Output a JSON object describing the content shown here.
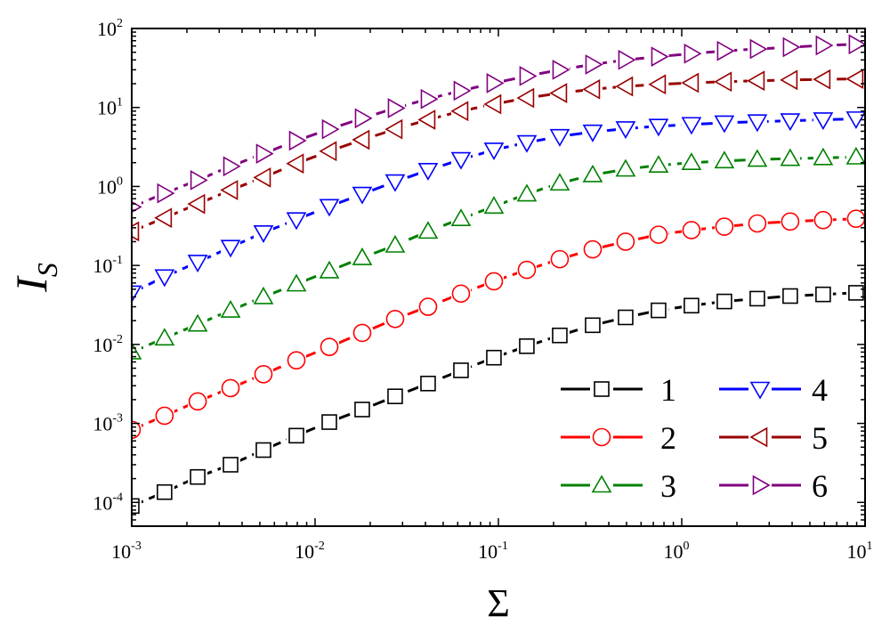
{
  "chart_data": {
    "type": "line",
    "xscale": "log",
    "yscale": "log",
    "xlim": [
      0.001,
      10
    ],
    "ylim": [
      5e-05,
      100
    ],
    "xlabel": "Σ",
    "ylabel": "I",
    "ylabel_sub": "S",
    "x_ticks": [
      {
        "base": "10",
        "exp": "-3",
        "value": 0.001
      },
      {
        "base": "10",
        "exp": "-2",
        "value": 0.01
      },
      {
        "base": "10",
        "exp": "-1",
        "value": 0.1
      },
      {
        "base": "10",
        "exp": "0",
        "value": 1
      },
      {
        "base": "10",
        "exp": "1",
        "value": 10
      }
    ],
    "y_ticks": [
      {
        "base": "10",
        "exp": "-4",
        "value": 0.0001
      },
      {
        "base": "10",
        "exp": "-3",
        "value": 0.001
      },
      {
        "base": "10",
        "exp": "-2",
        "value": 0.01
      },
      {
        "base": "10",
        "exp": "-1",
        "value": 0.1
      },
      {
        "base": "10",
        "exp": "0",
        "value": 1
      },
      {
        "base": "10",
        "exp": "1",
        "value": 10
      },
      {
        "base": "10",
        "exp": "2",
        "value": 100
      }
    ],
    "x": [
      0.001,
      0.00151,
      0.00229,
      0.00346,
      0.00523,
      0.00791,
      0.01196,
      0.01808,
      0.02734,
      0.04134,
      0.06251,
      0.09452,
      0.1429,
      0.2161,
      0.3268,
      0.4941,
      0.7471,
      1.1296,
      1.708,
      2.583,
      3.905,
      5.905,
      8.93
    ],
    "legend_placement": "bottom-right",
    "grid": false,
    "series": [
      {
        "name": "1",
        "color": "#000000",
        "marker": "square",
        "values": [
          9e-05,
          0.000135,
          0.00021,
          0.0003,
          0.00046,
          0.0007,
          0.00104,
          0.0015,
          0.0022,
          0.0032,
          0.0047,
          0.0068,
          0.0095,
          0.013,
          0.0175,
          0.022,
          0.027,
          0.031,
          0.035,
          0.038,
          0.041,
          0.043,
          0.045
        ]
      },
      {
        "name": "2",
        "color": "#ff0000",
        "marker": "circle",
        "values": [
          0.00083,
          0.00125,
          0.0019,
          0.0028,
          0.0042,
          0.0063,
          0.0093,
          0.014,
          0.021,
          0.03,
          0.044,
          0.063,
          0.088,
          0.12,
          0.16,
          0.2,
          0.245,
          0.28,
          0.31,
          0.34,
          0.36,
          0.375,
          0.39
        ]
      },
      {
        "name": "3",
        "color": "#008000",
        "marker": "triangle-up",
        "values": [
          0.008,
          0.012,
          0.018,
          0.027,
          0.04,
          0.058,
          0.085,
          0.125,
          0.18,
          0.27,
          0.39,
          0.56,
          0.8,
          1.1,
          1.4,
          1.65,
          1.85,
          2.0,
          2.1,
          2.2,
          2.25,
          2.3,
          2.35
        ]
      },
      {
        "name": "4",
        "color": "#0000ff",
        "marker": "triangle-down",
        "values": [
          0.045,
          0.072,
          0.11,
          0.17,
          0.26,
          0.38,
          0.56,
          0.8,
          1.15,
          1.6,
          2.2,
          2.9,
          3.6,
          4.3,
          4.9,
          5.4,
          5.8,
          6.1,
          6.4,
          6.6,
          6.8,
          7.0,
          7.2
        ]
      },
      {
        "name": "5",
        "color": "#990000",
        "marker": "triangle-left",
        "values": [
          0.27,
          0.4,
          0.6,
          0.9,
          1.3,
          1.95,
          2.8,
          3.9,
          5.3,
          7.0,
          9.0,
          11.0,
          13.2,
          15.2,
          17.0,
          18.5,
          19.6,
          20.5,
          21.2,
          21.8,
          22.3,
          22.7,
          23.0
        ]
      },
      {
        "name": "6",
        "color": "#800080",
        "marker": "triangle-right",
        "values": [
          0.55,
          0.82,
          1.2,
          1.8,
          2.6,
          3.8,
          5.3,
          7.3,
          9.8,
          12.8,
          16.3,
          20.3,
          25.0,
          30.0,
          35.0,
          40.0,
          44.0,
          48.0,
          52.0,
          55.0,
          58.0,
          61.0,
          63.0
        ]
      }
    ]
  }
}
